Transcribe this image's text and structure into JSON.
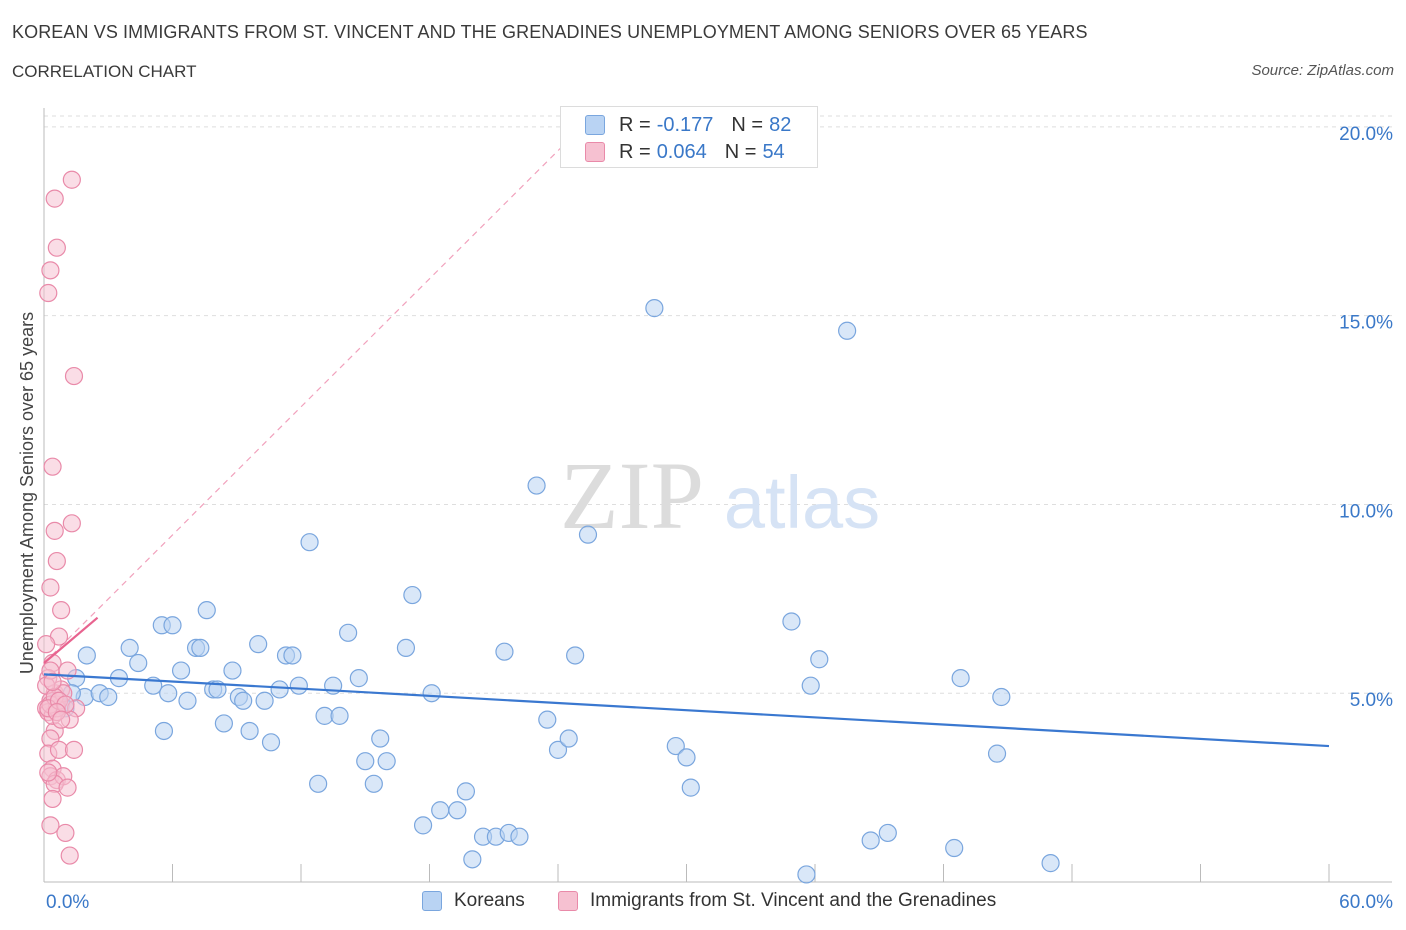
{
  "header": {
    "title": "KOREAN VS IMMIGRANTS FROM ST. VINCENT AND THE GRENADINES UNEMPLOYMENT AMONG SENIORS OVER 65 YEARS",
    "subtitle": "CORRELATION CHART",
    "source": "Source: ZipAtlas.com"
  },
  "watermark": {
    "zip": "ZIP",
    "atlas": "atlas"
  },
  "legend": {
    "rows": [
      {
        "r_label": "R =",
        "r_value": "-0.177",
        "n_label": "N =",
        "n_value": "82"
      },
      {
        "r_label": "R =",
        "r_value": "0.064",
        "n_label": "N =",
        "n_value": "54"
      }
    ]
  },
  "colors": {
    "blue_fill": "#b9d3f3",
    "blue_stroke": "#7aa6de",
    "blue_line": "#3a78d0",
    "pink_fill": "#f6c1d1",
    "pink_stroke": "#e98aa9",
    "pink_line": "#e8638f",
    "axis_text": "#3a78c8",
    "grid": "#dedede"
  },
  "chart_data": {
    "type": "scatter",
    "title": "KOREAN VS IMMIGRANTS FROM ST. VINCENT AND THE GRENADINES UNEMPLOYMENT AMONG SENIORS OVER 65 YEARS",
    "ylabel": "Unemployment Among Seniors over 65 years",
    "xlabel": "",
    "xlim": [
      0,
      60
    ],
    "ylim": [
      0,
      20.5
    ],
    "x_tick_labels": [
      "0.0%",
      "60.0%"
    ],
    "y_tick_labels": [
      "5.0%",
      "10.0%",
      "15.0%",
      "20.0%"
    ],
    "y_ticks": [
      5,
      10,
      15,
      20
    ],
    "grid": true,
    "legend_position": "top-center",
    "series": [
      {
        "name": "Koreans",
        "R": -0.177,
        "N": 82,
        "trend": {
          "x": [
            0,
            60
          ],
          "y": [
            5.5,
            3.6
          ]
        },
        "points": [
          [
            0.8,
            4.7
          ],
          [
            1.5,
            5.4
          ],
          [
            2.0,
            6.0
          ],
          [
            1.9,
            4.9
          ],
          [
            2.6,
            5.0
          ],
          [
            3.0,
            4.9
          ],
          [
            3.5,
            5.4
          ],
          [
            4.0,
            6.2
          ],
          [
            4.4,
            5.8
          ],
          [
            5.1,
            5.2
          ],
          [
            5.5,
            6.8
          ],
          [
            5.6,
            4.0
          ],
          [
            5.8,
            5.0
          ],
          [
            6.0,
            6.8
          ],
          [
            6.4,
            5.6
          ],
          [
            6.7,
            4.8
          ],
          [
            7.1,
            6.2
          ],
          [
            7.3,
            6.2
          ],
          [
            7.6,
            7.2
          ],
          [
            7.9,
            5.1
          ],
          [
            8.1,
            5.1
          ],
          [
            8.4,
            4.2
          ],
          [
            8.8,
            5.6
          ],
          [
            9.1,
            4.9
          ],
          [
            9.3,
            4.8
          ],
          [
            9.6,
            4.0
          ],
          [
            10.0,
            6.3
          ],
          [
            10.3,
            4.8
          ],
          [
            10.6,
            3.7
          ],
          [
            11.0,
            5.1
          ],
          [
            11.3,
            6.0
          ],
          [
            11.6,
            6.0
          ],
          [
            11.9,
            5.2
          ],
          [
            12.4,
            9.0
          ],
          [
            12.8,
            2.6
          ],
          [
            13.1,
            4.4
          ],
          [
            13.5,
            5.2
          ],
          [
            13.8,
            4.4
          ],
          [
            14.2,
            6.6
          ],
          [
            14.7,
            5.4
          ],
          [
            15.0,
            3.2
          ],
          [
            15.4,
            2.6
          ],
          [
            15.7,
            3.8
          ],
          [
            16.0,
            3.2
          ],
          [
            16.9,
            6.2
          ],
          [
            17.2,
            7.6
          ],
          [
            17.7,
            1.5
          ],
          [
            18.1,
            5.0
          ],
          [
            18.5,
            1.9
          ],
          [
            19.3,
            1.9
          ],
          [
            19.7,
            2.4
          ],
          [
            20.0,
            0.6
          ],
          [
            20.5,
            1.2
          ],
          [
            21.1,
            1.2
          ],
          [
            21.5,
            6.1
          ],
          [
            21.7,
            1.3
          ],
          [
            22.2,
            1.2
          ],
          [
            23.0,
            10.5
          ],
          [
            23.5,
            4.3
          ],
          [
            24.0,
            3.5
          ],
          [
            24.5,
            3.8
          ],
          [
            24.8,
            6.0
          ],
          [
            25.4,
            9.2
          ],
          [
            28.5,
            15.2
          ],
          [
            29.5,
            3.6
          ],
          [
            30.0,
            3.3
          ],
          [
            30.2,
            2.5
          ],
          [
            34.9,
            6.9
          ],
          [
            35.8,
            5.2
          ],
          [
            36.2,
            5.9
          ],
          [
            37.5,
            14.6
          ],
          [
            38.6,
            1.1
          ],
          [
            39.4,
            1.3
          ],
          [
            42.5,
            0.9
          ],
          [
            42.8,
            5.4
          ],
          [
            44.5,
            3.4
          ],
          [
            44.7,
            4.9
          ],
          [
            47.0,
            0.5
          ],
          [
            35.6,
            0.2
          ],
          [
            1.3,
            5.0
          ],
          [
            0.6,
            4.8
          ],
          [
            1.0,
            4.6
          ]
        ]
      },
      {
        "name": "Immigrants from St. Vincent and the Grenadines",
        "R": 0.064,
        "N": 54,
        "trend": {
          "x": [
            0,
            2.5
          ],
          "y": [
            5.8,
            7.0
          ]
        },
        "trend_extended": {
          "x": [
            0,
            26
          ],
          "y": [
            5.8,
            20.5
          ]
        },
        "points": [
          [
            0.5,
            18.1
          ],
          [
            0.6,
            16.8
          ],
          [
            0.3,
            16.2
          ],
          [
            0.2,
            15.6
          ],
          [
            1.3,
            18.6
          ],
          [
            1.4,
            13.4
          ],
          [
            0.4,
            11.0
          ],
          [
            0.5,
            9.3
          ],
          [
            1.3,
            9.5
          ],
          [
            0.6,
            8.5
          ],
          [
            0.3,
            7.8
          ],
          [
            0.8,
            7.2
          ],
          [
            0.7,
            6.5
          ],
          [
            0.1,
            6.3
          ],
          [
            0.4,
            5.8
          ],
          [
            1.1,
            5.6
          ],
          [
            0.2,
            5.4
          ],
          [
            0.5,
            5.0
          ],
          [
            0.8,
            5.1
          ],
          [
            0.3,
            4.8
          ],
          [
            0.1,
            4.6
          ],
          [
            0.6,
            4.7
          ],
          [
            1.5,
            4.6
          ],
          [
            1.2,
            4.3
          ],
          [
            0.5,
            4.0
          ],
          [
            0.3,
            3.8
          ],
          [
            0.2,
            3.4
          ],
          [
            0.7,
            3.5
          ],
          [
            1.4,
            3.5
          ],
          [
            0.4,
            3.0
          ],
          [
            0.3,
            2.8
          ],
          [
            0.6,
            2.7
          ],
          [
            0.9,
            2.8
          ],
          [
            0.5,
            2.6
          ],
          [
            1.1,
            2.5
          ],
          [
            0.4,
            2.2
          ],
          [
            0.3,
            1.5
          ],
          [
            1.0,
            1.3
          ],
          [
            1.2,
            0.7
          ],
          [
            0.2,
            4.5
          ],
          [
            0.4,
            4.4
          ],
          [
            0.6,
            4.6
          ],
          [
            0.1,
            5.2
          ],
          [
            0.9,
            5.0
          ],
          [
            0.3,
            4.7
          ],
          [
            0.5,
            4.9
          ],
          [
            0.2,
            4.6
          ],
          [
            0.7,
            4.8
          ],
          [
            0.3,
            5.6
          ],
          [
            1.0,
            4.7
          ],
          [
            0.4,
            5.3
          ],
          [
            0.6,
            4.5
          ],
          [
            0.2,
            2.9
          ],
          [
            0.8,
            4.3
          ]
        ]
      }
    ]
  }
}
